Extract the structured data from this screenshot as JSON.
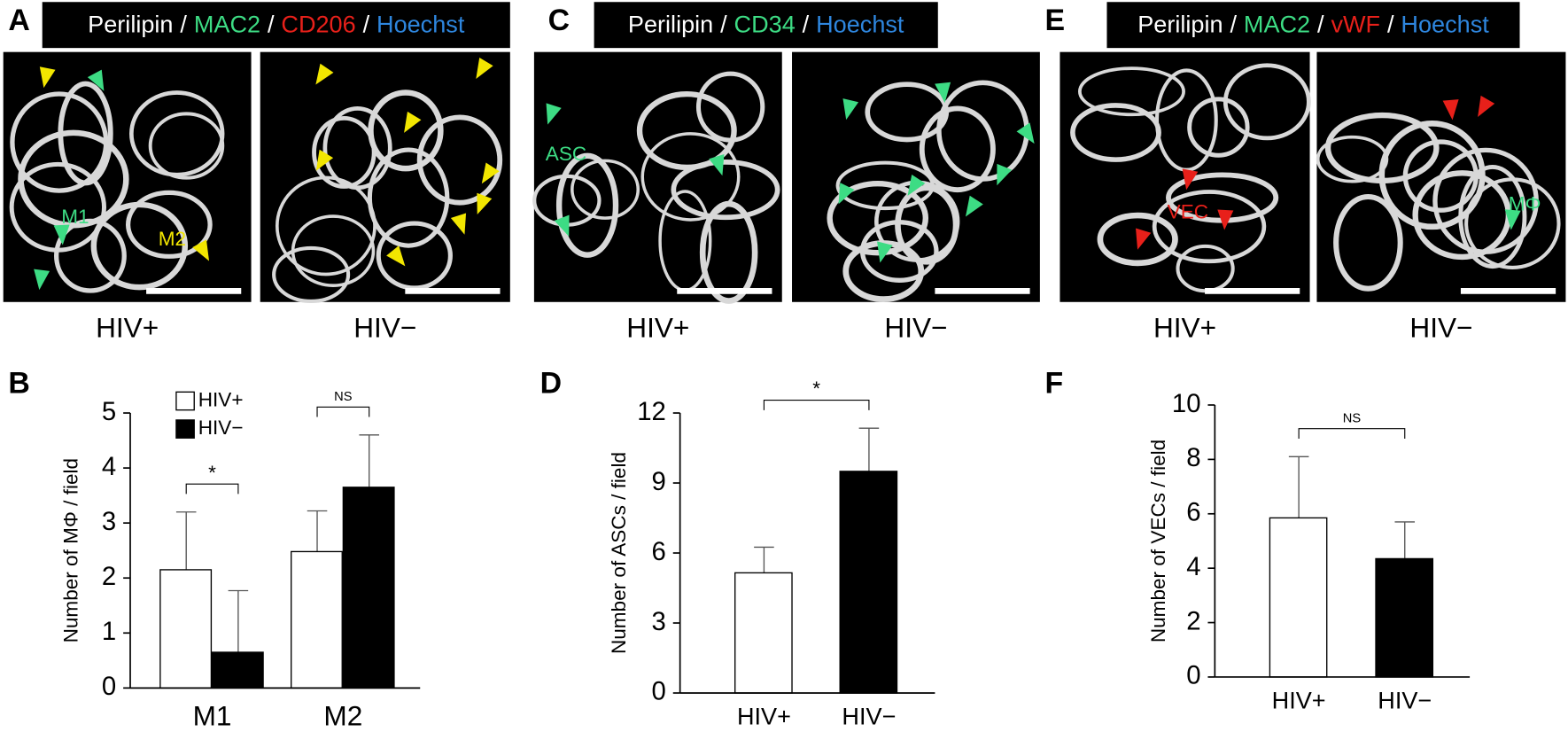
{
  "panels": [
    {
      "letter": "A",
      "separator": "/",
      "stains": [
        {
          "text": "Perilipin",
          "color": "#ffffff"
        },
        {
          "text": "MAC2",
          "color": "#3ddc84"
        },
        {
          "text": "CD206",
          "color": "#e8201a"
        },
        {
          "text": "Hoechst",
          "color": "#2e86de"
        }
      ],
      "labels": [
        "HIV+",
        "HIV−"
      ],
      "annotations": [
        {
          "text": "M1",
          "color": "#3ddc84"
        },
        {
          "text": "M2",
          "color": "#f2e600"
        }
      ]
    },
    {
      "letter": "C",
      "separator": "/",
      "stains": [
        {
          "text": "Perilipin",
          "color": "#ffffff"
        },
        {
          "text": "CD34",
          "color": "#3ddc84"
        },
        {
          "text": "Hoechst",
          "color": "#2e86de"
        }
      ],
      "labels": [
        "HIV+",
        "HIV−"
      ],
      "annotations": [
        {
          "text": "ASC",
          "color": "#3ddc84"
        }
      ]
    },
    {
      "letter": "E",
      "separator": "/",
      "stains": [
        {
          "text": "Perilipin",
          "color": "#ffffff"
        },
        {
          "text": "MAC2",
          "color": "#3ddc84"
        },
        {
          "text": "vWF",
          "color": "#e8201a"
        },
        {
          "text": "Hoechst",
          "color": "#2e86de"
        }
      ],
      "labels": [
        "HIV+",
        "HIV−"
      ],
      "annotations": [
        {
          "text": "VEC",
          "color": "#e8201a"
        },
        {
          "text": "MΦ",
          "color": "#3ddc84"
        }
      ]
    }
  ],
  "chart_data": [
    {
      "type": "bar",
      "panel": "B",
      "ylabel": "Number of MΦ / field",
      "categories": [
        "M1",
        "M2"
      ],
      "series": [
        {
          "name": "HIV+",
          "color": "#ffffff",
          "values": [
            2.15,
            2.48
          ],
          "errors": [
            1.05,
            0.74
          ]
        },
        {
          "name": "HIV−",
          "color": "#000000",
          "values": [
            0.65,
            3.65
          ],
          "errors": [
            1.12,
            0.95
          ]
        }
      ],
      "significance": [
        "*",
        "NS"
      ],
      "ylim": [
        0,
        5
      ],
      "yticks": [
        0,
        1,
        2,
        3,
        4,
        5
      ],
      "legend": "top-left"
    },
    {
      "type": "bar",
      "panel": "D",
      "ylabel": "Number of ASCs / field",
      "categories": [
        "HIV+",
        "HIV−"
      ],
      "values": [
        5.15,
        9.5
      ],
      "errors": [
        1.1,
        1.85
      ],
      "colors": [
        "#ffffff",
        "#000000"
      ],
      "significance": "*",
      "ylim": [
        0,
        12
      ],
      "yticks": [
        0,
        3,
        6,
        9,
        12
      ]
    },
    {
      "type": "bar",
      "panel": "F",
      "ylabel": "Number of VECs / field",
      "categories": [
        "HIV+",
        "HIV−"
      ],
      "values": [
        5.85,
        4.35
      ],
      "errors": [
        2.25,
        1.35
      ],
      "colors": [
        "#ffffff",
        "#000000"
      ],
      "significance": "NS",
      "ylim": [
        0,
        10
      ],
      "yticks": [
        0,
        2,
        4,
        6,
        8,
        10
      ]
    }
  ]
}
